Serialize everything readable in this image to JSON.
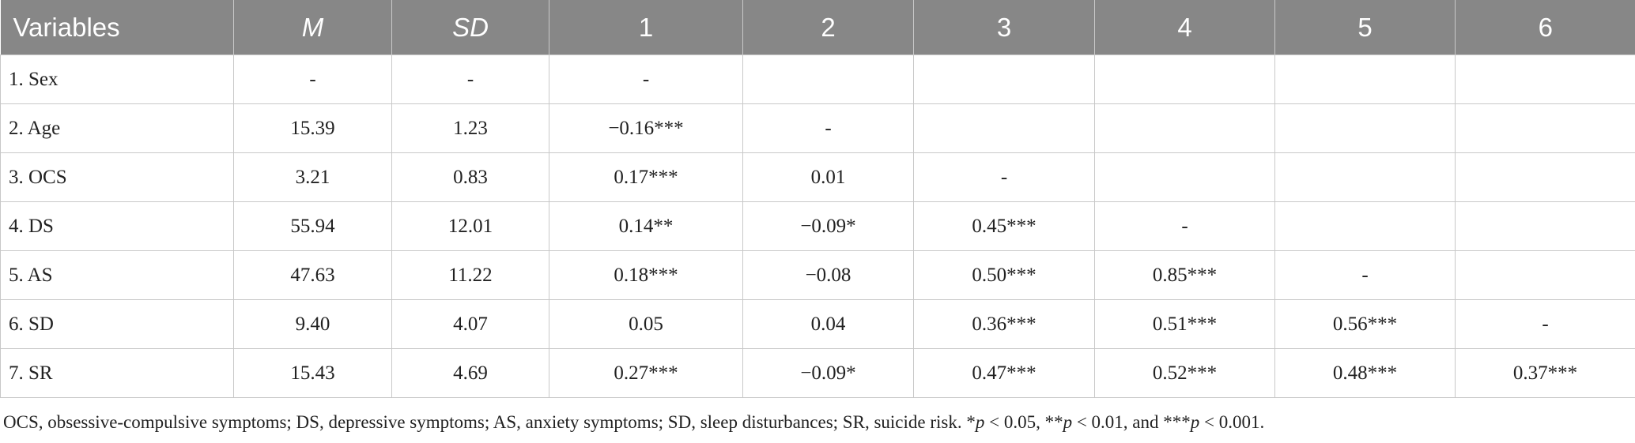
{
  "table": {
    "headers": [
      "Variables",
      "M",
      "SD",
      "1",
      "2",
      "3",
      "4",
      "5",
      "6"
    ],
    "rows": [
      [
        "1. Sex",
        "-",
        "-",
        "-",
        "",
        "",
        "",
        "",
        ""
      ],
      [
        "2. Age",
        "15.39",
        "1.23",
        "−0.16***",
        "-",
        "",
        "",
        "",
        ""
      ],
      [
        "3. OCS",
        "3.21",
        "0.83",
        "0.17***",
        "0.01",
        "-",
        "",
        "",
        ""
      ],
      [
        "4. DS",
        "55.94",
        "12.01",
        "0.14**",
        "−0.09*",
        "0.45***",
        "-",
        "",
        ""
      ],
      [
        "5. AS",
        "47.63",
        "11.22",
        "0.18***",
        "−0.08",
        "0.50***",
        "0.85***",
        "-",
        ""
      ],
      [
        "6. SD",
        "9.40",
        "4.07",
        "0.05",
        "0.04",
        "0.36***",
        "0.51***",
        "0.56***",
        "-"
      ],
      [
        "7. SR",
        "15.43",
        "4.69",
        "0.27***",
        "−0.09*",
        "0.47***",
        "0.52***",
        "0.48***",
        "0.37***"
      ]
    ]
  },
  "footnote": {
    "text": "OCS, obsessive-compulsive symptoms; DS, depressive symptoms; AS, anxiety symptoms; SD, sleep disturbances; SR, suicide risk.",
    "p1_star": "*",
    "p1_cond": " < 0.05, ",
    "p2_star": "**",
    "p2_cond": " < 0.01, and ",
    "p3_star": "***",
    "p3_cond": " < 0.001.",
    "p_symbol": "p"
  }
}
